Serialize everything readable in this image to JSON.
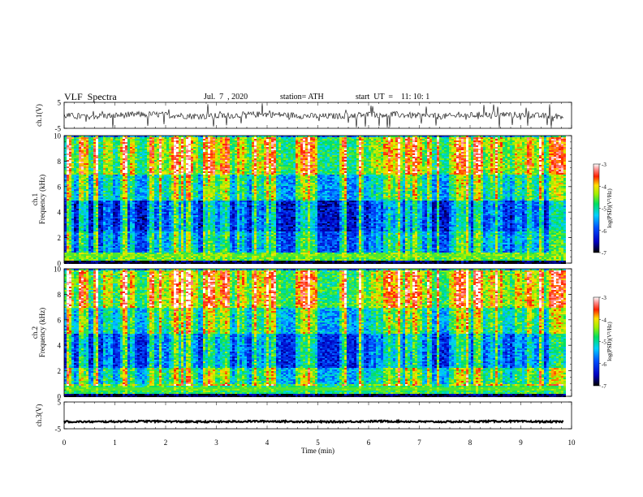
{
  "header": {
    "title": "VLF  Spectra",
    "date": "Jul.  7  , 2020",
    "station": "station= ATH",
    "start": "start  UT  =    11: 10: 1"
  },
  "chart_data": [
    {
      "type": "line",
      "panel": "ch1-waveform",
      "ylabel": "ch.1(V)",
      "ylim": [
        -5,
        5
      ],
      "y_ticks": [
        "5",
        "-5"
      ],
      "x_range_min": [
        0,
        9.85
      ],
      "series": [
        {
          "values_mean": 0,
          "values_envelope": [
            -1.2,
            1.2
          ],
          "spike_peak": 4.8
        }
      ]
    },
    {
      "type": "heatmap",
      "panel": "ch1-spectrogram",
      "ylabel": "ch.1\nFrequency (kHz)",
      "ylabel_lines": [
        "ch.1",
        "Frequency (kHz)"
      ],
      "ylim": [
        0,
        10
      ],
      "y_ticks": [
        "0",
        "2",
        "4",
        "6",
        "8",
        "10"
      ],
      "x_range_min": [
        0,
        9.85
      ],
      "colorbar": {
        "label": "log(PSD)(V²/Hz)",
        "range": [
          -7,
          -3
        ],
        "ticks": [
          "-3",
          "-4",
          "-5",
          "-6",
          "-7"
        ]
      },
      "bands_khz": [
        {
          "from": 0.0,
          "to": 0.3,
          "level": -6.9
        },
        {
          "from": 0.3,
          "to": 0.9,
          "level": -4.7
        },
        {
          "from": 0.9,
          "to": 2.5,
          "level": -6.0
        },
        {
          "from": 2.5,
          "to": 5.0,
          "level": -6.4
        },
        {
          "from": 5.0,
          "to": 7.0,
          "level": -5.6
        },
        {
          "from": 7.0,
          "to": 10.0,
          "level": -4.9
        }
      ]
    },
    {
      "type": "heatmap",
      "panel": "ch2-spectrogram",
      "ylabel": "ch.2\nFrequency (kHz)",
      "ylabel_lines": [
        "ch.2",
        "Frequency (kHz)"
      ],
      "ylim": [
        0,
        10
      ],
      "y_ticks": [
        "0",
        "2",
        "4",
        "6",
        "8",
        "10"
      ],
      "x_range_min": [
        0,
        9.85
      ],
      "colorbar": {
        "label": "log(PSD)(V²/Hz)",
        "range": [
          -7,
          -3
        ],
        "ticks": [
          "-3",
          "-4",
          "-5",
          "-6",
          "-7"
        ]
      },
      "bands_khz": [
        {
          "from": 0.0,
          "to": 0.3,
          "level": -6.9
        },
        {
          "from": 0.3,
          "to": 1.0,
          "level": -4.9
        },
        {
          "from": 1.0,
          "to": 2.3,
          "level": -5.5
        },
        {
          "from": 2.3,
          "to": 5.0,
          "level": -6.2
        },
        {
          "from": 5.0,
          "to": 7.0,
          "level": -5.5
        },
        {
          "from": 7.0,
          "to": 10.0,
          "level": -4.8
        }
      ]
    },
    {
      "type": "line",
      "panel": "ch3-waveform",
      "ylabel": "ch.3(V)",
      "ylim": [
        -5,
        5
      ],
      "y_ticks": [
        "5",
        "-5"
      ],
      "x_range_min": [
        0,
        9.85
      ],
      "series": [
        {
          "values_mean": -2.3,
          "values_envelope": [
            -2.6,
            -2.0
          ]
        }
      ]
    }
  ],
  "x_axis": {
    "label": "Time  (min)",
    "ticks": [
      "0",
      "1",
      "2",
      "3",
      "4",
      "5",
      "6",
      "7",
      "8",
      "9",
      "10"
    ],
    "range": [
      0,
      10
    ]
  }
}
